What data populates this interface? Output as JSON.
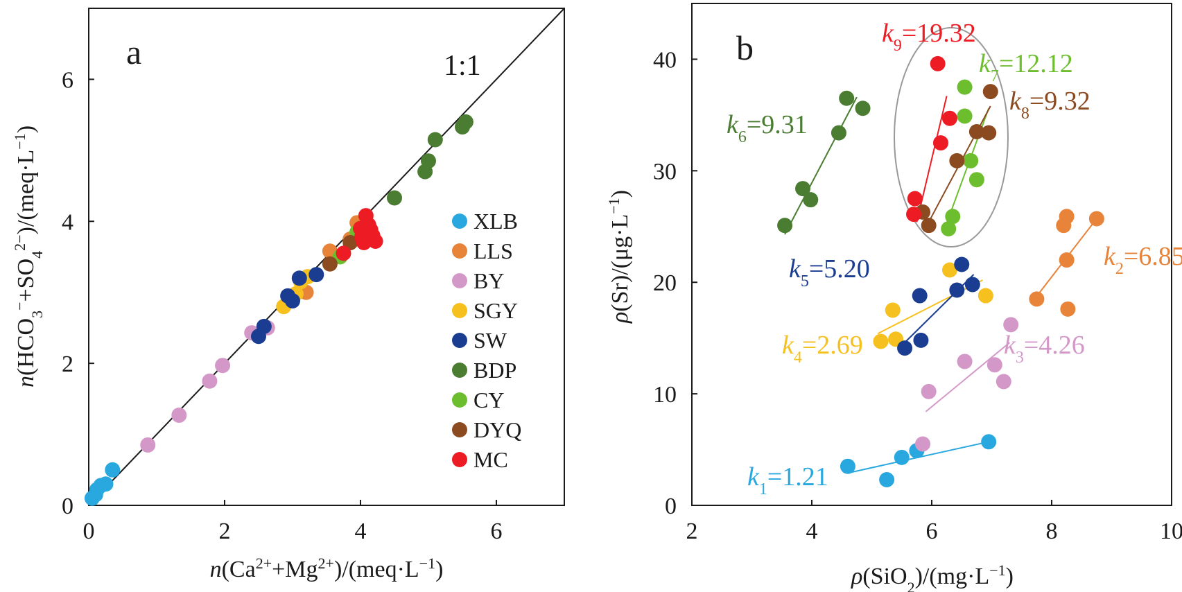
{
  "figure": {
    "panel_a": {
      "label": "a",
      "ratio_label": "1:1"
    },
    "panel_b": {
      "label": "b"
    }
  },
  "chart_data": [
    {
      "type": "scatter",
      "panel": "a",
      "title": "",
      "xlabel": "n(Ca2++Mg2+)/(meq·L−1)",
      "ylabel": "n(HCO3−+SO42−)/(meq·L−1)",
      "xlim": [
        0,
        7
      ],
      "ylim": [
        0,
        7
      ],
      "xticks": [
        0,
        2,
        4,
        6
      ],
      "yticks": [
        0,
        2,
        4,
        6
      ],
      "grid": false,
      "legend": "right-middle",
      "reference_line": {
        "label": "1:1",
        "from": [
          0,
          0
        ],
        "to": [
          7,
          7
        ]
      },
      "series": [
        {
          "name": "XLB",
          "color": "#29a8e0",
          "points": [
            [
              0.05,
              0.1
            ],
            [
              0.1,
              0.15
            ],
            [
              0.12,
              0.22
            ],
            [
              0.18,
              0.28
            ],
            [
              0.25,
              0.3
            ],
            [
              0.35,
              0.5
            ]
          ]
        },
        {
          "name": "LLS",
          "color": "#e8833a",
          "points": [
            [
              3.2,
              3.0
            ],
            [
              3.55,
              3.58
            ],
            [
              3.95,
              3.98
            ],
            [
              3.85,
              3.75
            ]
          ]
        },
        {
          "name": "BY",
          "color": "#d498c8",
          "points": [
            [
              0.87,
              0.85
            ],
            [
              1.33,
              1.27
            ],
            [
              1.78,
              1.75
            ],
            [
              1.97,
              1.97
            ],
            [
              2.4,
              2.43
            ],
            [
              2.63,
              2.5
            ]
          ]
        },
        {
          "name": "SGY",
          "color": "#f6c11e",
          "points": [
            [
              2.87,
              2.8
            ],
            [
              3.05,
              2.98
            ],
            [
              3.22,
              3.22
            ],
            [
              3.12,
              3.15
            ]
          ]
        },
        {
          "name": "SW",
          "color": "#1b3d91",
          "points": [
            [
              2.5,
              2.38
            ],
            [
              2.58,
              2.52
            ],
            [
              2.93,
              2.95
            ],
            [
              3.0,
              2.88
            ],
            [
              3.1,
              3.2
            ],
            [
              3.35,
              3.25
            ]
          ]
        },
        {
          "name": "BDP",
          "color": "#4a7c32",
          "points": [
            [
              4.5,
              4.33
            ],
            [
              4.95,
              4.7
            ],
            [
              5.0,
              4.85
            ],
            [
              5.1,
              5.15
            ],
            [
              5.5,
              5.33
            ],
            [
              5.55,
              5.4
            ]
          ]
        },
        {
          "name": "CY",
          "color": "#6dbe2f",
          "points": [
            [
              3.7,
              3.5
            ],
            [
              3.95,
              3.85
            ],
            [
              4.05,
              3.92
            ]
          ]
        },
        {
          "name": "DYQ",
          "color": "#8b4a20",
          "points": [
            [
              3.55,
              3.4
            ],
            [
              3.85,
              3.7
            ]
          ]
        },
        {
          "name": "MC",
          "color": "#ed1c24",
          "points": [
            [
              3.75,
              3.55
            ],
            [
              4.02,
              3.78
            ],
            [
              4.05,
              3.7
            ],
            [
              4.08,
              4.08
            ],
            [
              4.12,
              3.95
            ],
            [
              4.18,
              3.8
            ],
            [
              4.15,
              3.88
            ],
            [
              4.22,
              3.72
            ],
            [
              4.0,
              3.9
            ]
          ]
        }
      ]
    },
    {
      "type": "scatter",
      "panel": "b",
      "title": "",
      "xlabel": "ρ(SiO2)/(mg·L−1)",
      "ylabel": "ρ(Sr)/(μg·L−1)",
      "xlim": [
        2,
        10
      ],
      "ylim": [
        0,
        45
      ],
      "xticks": [
        2,
        4,
        6,
        8,
        10
      ],
      "yticks": [
        0,
        10,
        20,
        30,
        40
      ],
      "grid": false,
      "highlight": "ellipse around k7, k8 and k9 groups",
      "series": [
        {
          "name": "XLB",
          "k_label": "k1=1.21",
          "color": "#29a8e0",
          "points": [
            [
              4.6,
              3.5
            ],
            [
              5.25,
              2.3
            ],
            [
              5.5,
              4.3
            ],
            [
              5.75,
              4.9
            ],
            [
              6.95,
              5.7
            ]
          ],
          "fit": [
            [
              4.6,
              2.9
            ],
            [
              6.95,
              5.7
            ]
          ]
        },
        {
          "name": "LLS",
          "k_label": "k2=6.85",
          "color": "#e8833a",
          "points": [
            [
              7.75,
              18.5
            ],
            [
              8.2,
              25.1
            ],
            [
              8.25,
              25.9
            ],
            [
              8.25,
              22.0
            ],
            [
              8.27,
              17.6
            ],
            [
              8.75,
              25.7
            ]
          ],
          "fit": [
            [
              7.7,
              18.4
            ],
            [
              8.75,
              25.7
            ]
          ]
        },
        {
          "name": "BY",
          "k_label": "k3=4.26",
          "color": "#d498c8",
          "points": [
            [
              5.85,
              5.5
            ],
            [
              5.95,
              10.2
            ],
            [
              6.55,
              12.9
            ],
            [
              7.05,
              12.6
            ],
            [
              7.2,
              11.1
            ],
            [
              7.32,
              16.2
            ]
          ],
          "fit": [
            [
              5.9,
              8.4
            ],
            [
              7.3,
              14.6
            ]
          ]
        },
        {
          "name": "SGY",
          "k_label": "k4=2.69",
          "color": "#f6c11e",
          "points": [
            [
              5.15,
              14.7
            ],
            [
              5.35,
              17.5
            ],
            [
              5.4,
              14.9
            ],
            [
              6.3,
              21.1
            ],
            [
              6.9,
              18.8
            ]
          ],
          "fit": [
            [
              5.1,
              15.4
            ],
            [
              6.85,
              20.2
            ]
          ]
        },
        {
          "name": "SW",
          "k_label": "k5=5.20",
          "color": "#1b3d91",
          "points": [
            [
              5.55,
              14.1
            ],
            [
              5.8,
              18.8
            ],
            [
              5.82,
              14.8
            ],
            [
              6.42,
              19.3
            ],
            [
              6.5,
              21.6
            ],
            [
              6.68,
              19.8
            ]
          ],
          "fit": [
            [
              5.55,
              14.6
            ],
            [
              6.7,
              20.7
            ]
          ]
        },
        {
          "name": "BDP",
          "k_label": "k6=9.31",
          "color": "#4a7c32",
          "points": [
            [
              3.55,
              25.1
            ],
            [
              3.85,
              28.4
            ],
            [
              3.98,
              27.4
            ],
            [
              4.45,
              33.4
            ],
            [
              4.58,
              36.5
            ],
            [
              4.85,
              35.6
            ]
          ],
          "fit": [
            [
              3.55,
              24.3
            ],
            [
              4.75,
              36.6
            ]
          ]
        },
        {
          "name": "CY",
          "k_label": "k7=12.12",
          "color": "#6dbe2f",
          "points": [
            [
              6.35,
              25.9
            ],
            [
              6.28,
              24.8
            ],
            [
              6.55,
              37.5
            ],
            [
              6.55,
              34.9
            ],
            [
              6.65,
              30.9
            ],
            [
              6.75,
              29.2
            ]
          ],
          "fit": [
            [
              6.25,
              25.3
            ],
            [
              6.95,
              35.6
            ]
          ]
        },
        {
          "name": "DYQ",
          "k_label": "k8=9.32",
          "color": "#8b4a20",
          "points": [
            [
              5.95,
              25.1
            ],
            [
              5.85,
              26.3
            ],
            [
              6.42,
              30.9
            ],
            [
              6.75,
              33.5
            ],
            [
              6.95,
              33.4
            ],
            [
              6.98,
              37.1
            ]
          ],
          "fit": [
            [
              5.95,
              25.4
            ],
            [
              6.98,
              35.8
            ]
          ]
        },
        {
          "name": "MC",
          "k_label": "k9=19.32",
          "color": "#ed1c24",
          "points": [
            [
              5.7,
              26.1
            ],
            [
              5.72,
              27.5
            ],
            [
              6.1,
              39.6
            ],
            [
              6.15,
              32.5
            ],
            [
              6.3,
              34.7
            ]
          ],
          "fit": [
            [
              5.75,
              25.4
            ],
            [
              6.25,
              36.7
            ]
          ]
        }
      ]
    }
  ]
}
